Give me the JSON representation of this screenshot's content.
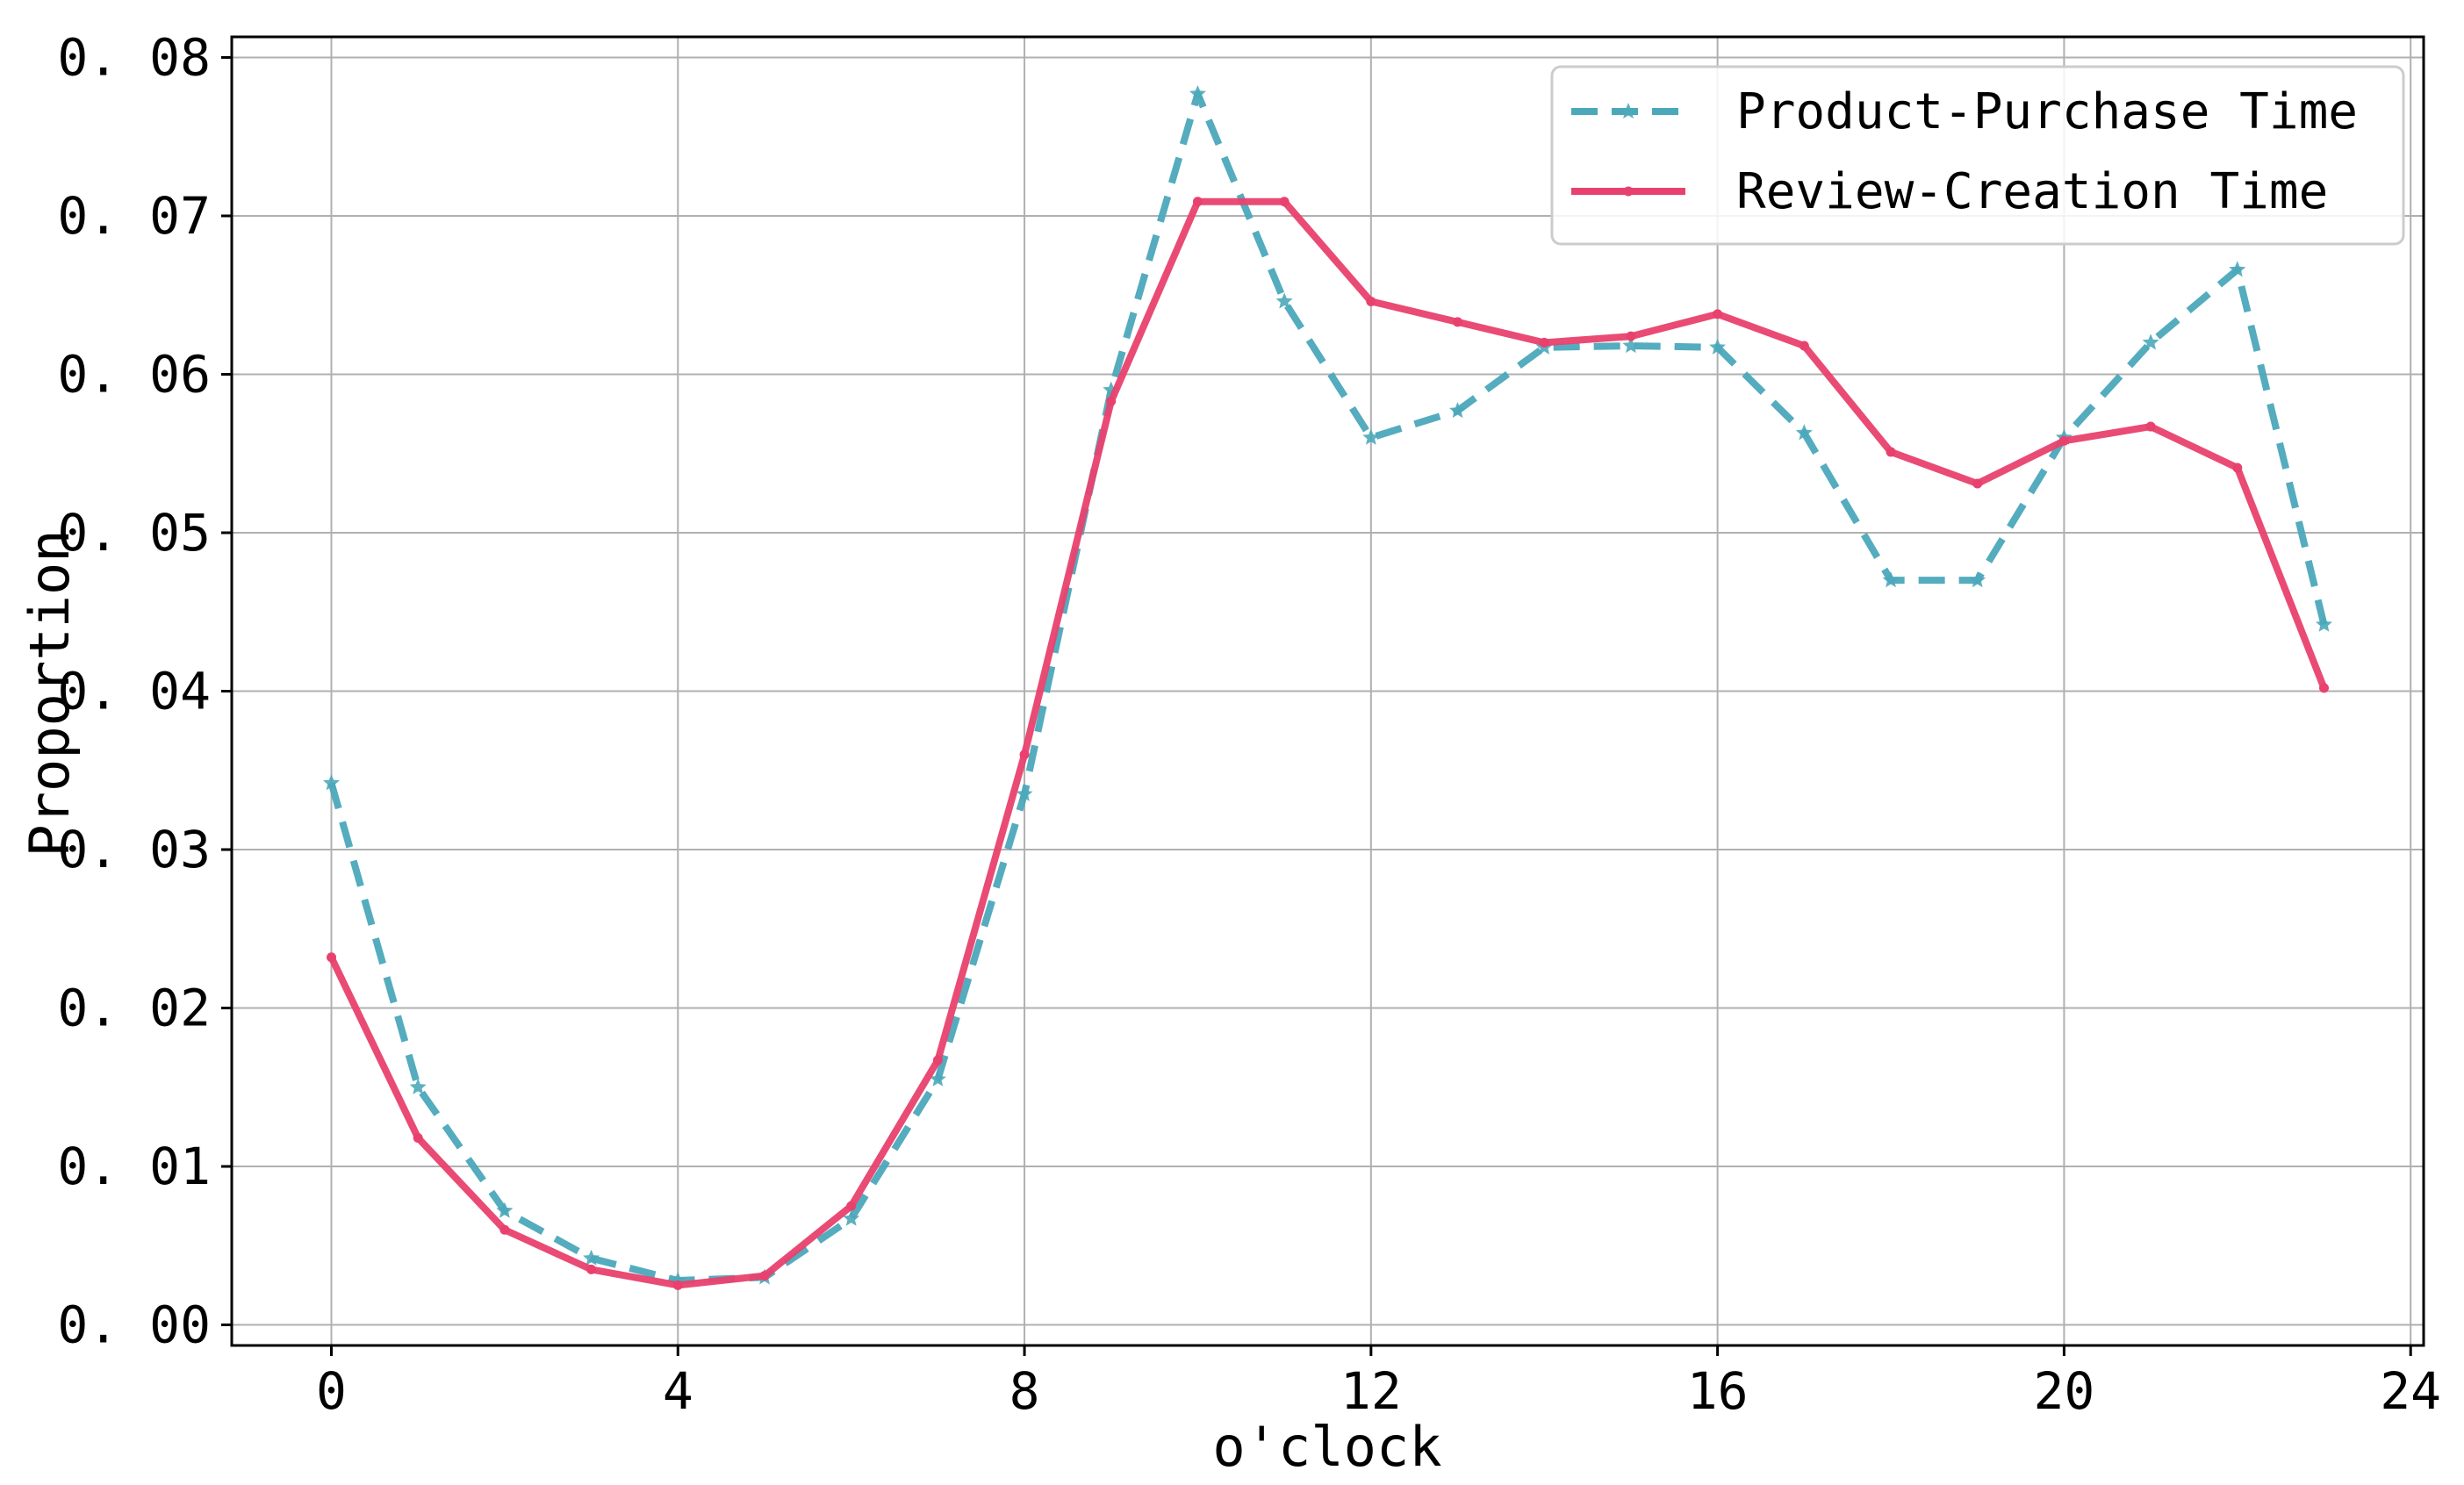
{
  "chart_data": {
    "type": "line",
    "title": "",
    "xlabel": "o'clock",
    "ylabel": "Proportion",
    "xlim": [
      -1.15,
      24.15
    ],
    "ylim": [
      -0.0013,
      0.0813
    ],
    "xticks": [
      0,
      4,
      8,
      12,
      16,
      20,
      24
    ],
    "xtick_labels": [
      "0",
      "4",
      "8",
      "12",
      "16",
      "20",
      "24"
    ],
    "yticks": [
      0.0,
      0.01,
      0.02,
      0.03,
      0.04,
      0.05,
      0.06,
      0.07,
      0.08
    ],
    "ytick_labels": [
      "0. 00",
      "0. 01",
      "0. 02",
      "0. 03",
      "0. 04",
      "0. 05",
      "0. 06",
      "0. 07",
      "0. 08"
    ],
    "grid": true,
    "legend_position": "top-right",
    "x": [
      0,
      1,
      2,
      3,
      4,
      5,
      6,
      7,
      8,
      9,
      10,
      11,
      12,
      13,
      14,
      15,
      16,
      17,
      18,
      19,
      20,
      21,
      22,
      23
    ],
    "series": [
      {
        "name": "Product-Purchase Time",
        "color": "#4ba8ba",
        "line_style": "dashed",
        "marker": "star",
        "values": [
          0.0342,
          0.015,
          0.0072,
          0.0042,
          0.0028,
          0.003,
          0.0067,
          0.0155,
          0.0335,
          0.059,
          0.0777,
          0.0646,
          0.056,
          0.0577,
          0.0617,
          0.0618,
          0.0617,
          0.0563,
          0.047,
          0.047,
          0.056,
          0.062,
          0.0666,
          0.0442
        ]
      },
      {
        "name": "Review-Creation Time",
        "color": "#e8416e",
        "line_style": "solid",
        "marker": "dot",
        "values": [
          0.0232,
          0.0118,
          0.006,
          0.0035,
          0.0025,
          0.0031,
          0.0075,
          0.0167,
          0.036,
          0.0583,
          0.0709,
          0.0709,
          0.0646,
          0.0633,
          0.062,
          0.0624,
          0.0638,
          0.0618,
          0.0551,
          0.0531,
          0.0558,
          0.0567,
          0.0541,
          0.0402
        ]
      }
    ]
  }
}
